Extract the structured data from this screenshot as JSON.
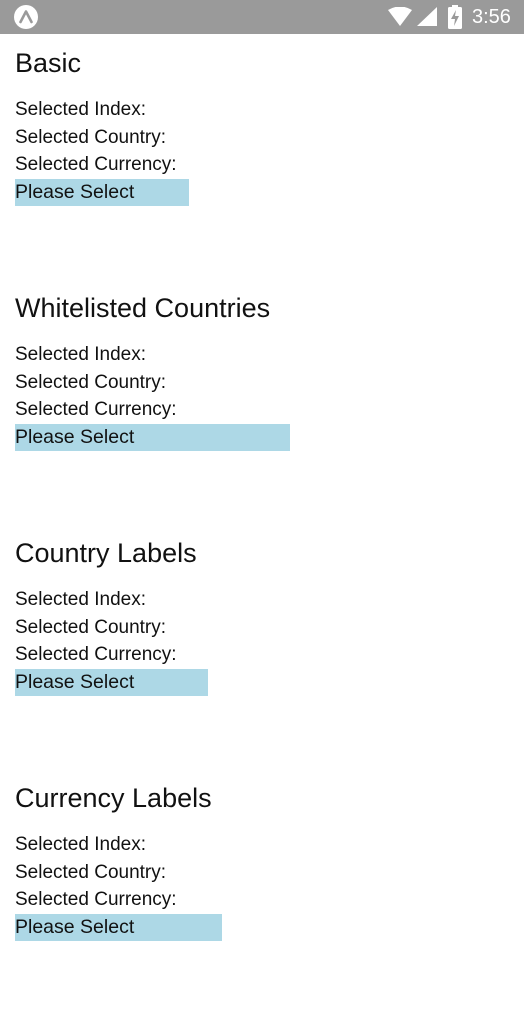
{
  "status_bar": {
    "time": "3:56",
    "app_icon": "expo-a-icon",
    "wifi_icon": "wifi-icon",
    "signal_icon": "cell-signal-icon",
    "battery_icon": "battery-charging-icon",
    "background_color": "#9a9a9a"
  },
  "picker_color": "#add8e6",
  "sections": [
    {
      "title": "Basic",
      "selected_index_label": "Selected Index:",
      "selected_country_label": "Selected Country:",
      "selected_currency_label": "Selected Currency:",
      "picker_label": "Please Select"
    },
    {
      "title": "Whitelisted Countries",
      "selected_index_label": "Selected Index:",
      "selected_country_label": "Selected Country:",
      "selected_currency_label": "Selected Currency:",
      "picker_label": "Please Select"
    },
    {
      "title": "Country Labels",
      "selected_index_label": "Selected Index:",
      "selected_country_label": "Selected Country:",
      "selected_currency_label": "Selected Currency:",
      "picker_label": "Please Select"
    },
    {
      "title": "Currency Labels",
      "selected_index_label": "Selected Index:",
      "selected_country_label": "Selected Country:",
      "selected_currency_label": "Selected Currency:",
      "picker_label": "Please Select"
    }
  ]
}
